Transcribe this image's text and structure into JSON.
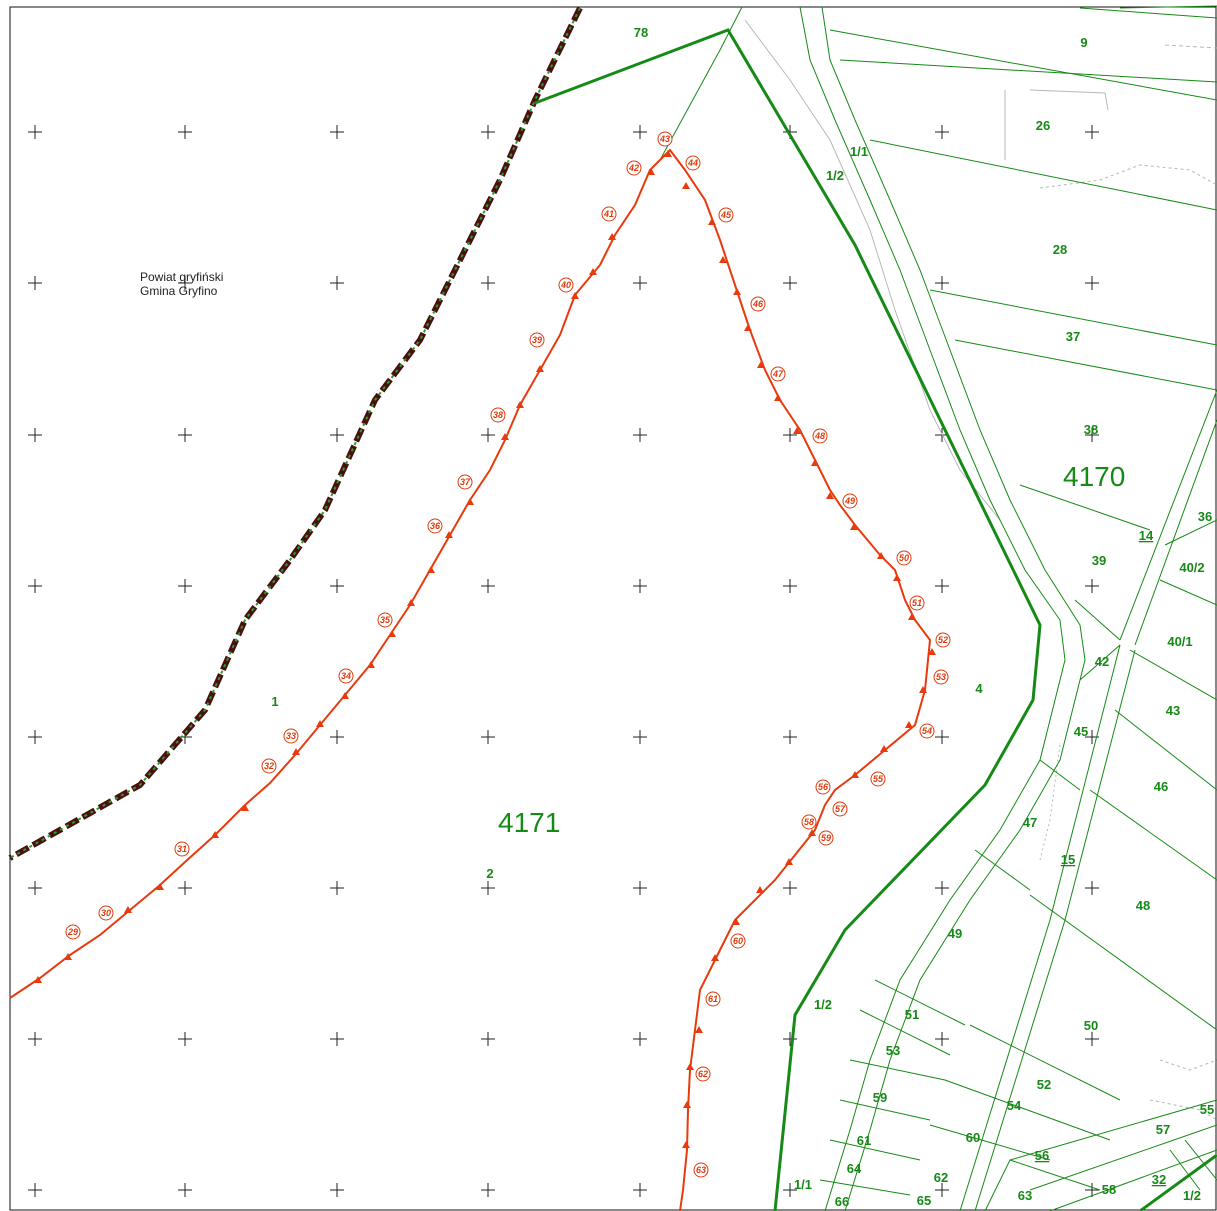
{
  "map": {
    "admin_label": [
      "Powiat gryfiński",
      "Gmina Gryfino"
    ],
    "sheet_labels": [
      "4171",
      "4170"
    ],
    "parcel_labels": [
      "78",
      "9",
      "26",
      "1/1",
      "1/2",
      "28",
      "37",
      "38",
      "36",
      "14",
      "40/2",
      "39",
      "40/1",
      "42",
      "43",
      "4",
      "45",
      "46",
      "47",
      "15",
      "48",
      "49",
      "1/2",
      "51",
      "50",
      "53",
      "52",
      "59",
      "54",
      "55",
      "61",
      "60",
      "57",
      "64",
      "62",
      "56",
      "1/1",
      "66",
      "65",
      "63",
      "58",
      "32",
      "1/2",
      "1",
      "2"
    ],
    "underlined_labels": [
      "14",
      "15",
      "56",
      "32"
    ],
    "boundary_points": [
      "29",
      "30",
      "31",
      "32",
      "33",
      "34",
      "35",
      "36",
      "37",
      "38",
      "39",
      "40",
      "41",
      "42",
      "43",
      "44",
      "45",
      "46",
      "47",
      "48",
      "49",
      "50",
      "51",
      "52",
      "53",
      "54",
      "55",
      "56",
      "57",
      "58",
      "59",
      "60",
      "61",
      "62",
      "63"
    ],
    "colors": {
      "parcel_line": "#168a16",
      "boundary_line": "#e83a0c",
      "admin_boundary_dark": "#4a1010",
      "admin_boundary_green": "#2e9a2e",
      "grid_cross": "#222222",
      "background": "#ffffff"
    }
  }
}
